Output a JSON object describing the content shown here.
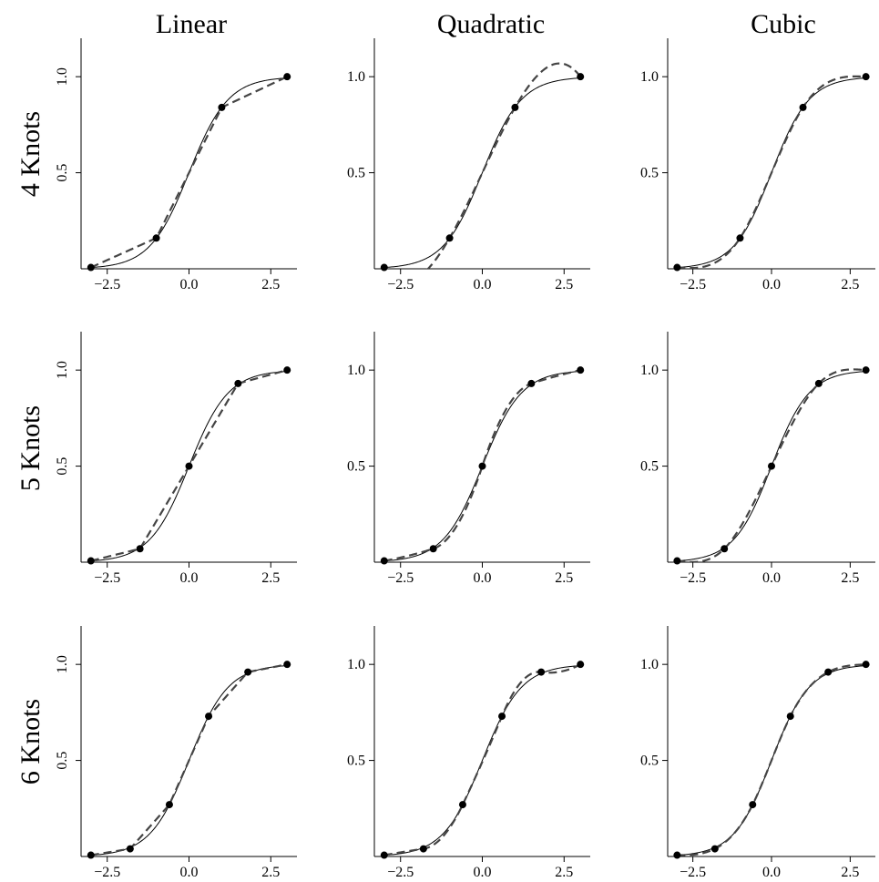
{
  "column_titles": [
    "Linear",
    "Quadratic",
    "Cubic"
  ],
  "row_titles": [
    "4 Knots",
    "5 Knots",
    "6 Knots"
  ],
  "colors": {
    "true_curve": "#000000",
    "approx_curve": "#444444",
    "knots": "#000000"
  },
  "chart_data": {
    "type": "line",
    "layout": "3x3 grid",
    "xlim": [
      -3.3,
      3.3
    ],
    "ylim": [
      0,
      1.2
    ],
    "x_ticks": [
      -2.5,
      0.0,
      2.5
    ],
    "x_tick_labels": [
      "−2.5",
      "0.0",
      "2.5"
    ],
    "y_ticks": [
      0.5,
      1.0
    ],
    "y_tick_labels": [
      "0.5",
      "1.0"
    ],
    "grid": false,
    "reference_function": "logistic(1.67x)",
    "panels": [
      {
        "row": "4 Knots",
        "column": "Linear",
        "degree": 1,
        "knots": [
          [
            -3.0,
            0.007
          ],
          [
            -1.0,
            0.16
          ],
          [
            1.0,
            0.84
          ],
          [
            3.0,
            1.0
          ]
        ]
      },
      {
        "row": "4 Knots",
        "column": "Quadratic",
        "degree": 2,
        "knots": [
          [
            -3.0,
            0.007
          ],
          [
            -1.0,
            0.16
          ],
          [
            1.0,
            0.84
          ],
          [
            3.0,
            1.0
          ]
        ]
      },
      {
        "row": "4 Knots",
        "column": "Cubic",
        "degree": 3,
        "knots": [
          [
            -3.0,
            0.007
          ],
          [
            -1.0,
            0.16
          ],
          [
            1.0,
            0.84
          ],
          [
            3.0,
            1.0
          ]
        ]
      },
      {
        "row": "5 Knots",
        "column": "Linear",
        "degree": 1,
        "knots": [
          [
            -3.0,
            0.007
          ],
          [
            -1.5,
            0.07
          ],
          [
            0.0,
            0.5
          ],
          [
            1.5,
            0.93
          ],
          [
            3.0,
            1.0
          ]
        ]
      },
      {
        "row": "5 Knots",
        "column": "Quadratic",
        "degree": 2,
        "knots": [
          [
            -3.0,
            0.007
          ],
          [
            -1.5,
            0.07
          ],
          [
            0.0,
            0.5
          ],
          [
            1.5,
            0.93
          ],
          [
            3.0,
            1.0
          ]
        ]
      },
      {
        "row": "5 Knots",
        "column": "Cubic",
        "degree": 3,
        "knots": [
          [
            -3.0,
            0.007
          ],
          [
            -1.5,
            0.07
          ],
          [
            0.0,
            0.5
          ],
          [
            1.5,
            0.93
          ],
          [
            3.0,
            1.0
          ]
        ]
      },
      {
        "row": "6 Knots",
        "column": "Linear",
        "degree": 1,
        "knots": [
          [
            -3.0,
            0.007
          ],
          [
            -1.8,
            0.04
          ],
          [
            -0.6,
            0.27
          ],
          [
            0.6,
            0.73
          ],
          [
            1.8,
            0.96
          ],
          [
            3.0,
            1.0
          ]
        ]
      },
      {
        "row": "6 Knots",
        "column": "Quadratic",
        "degree": 2,
        "knots": [
          [
            -3.0,
            0.007
          ],
          [
            -1.8,
            0.04
          ],
          [
            -0.6,
            0.27
          ],
          [
            0.6,
            0.73
          ],
          [
            1.8,
            0.96
          ],
          [
            3.0,
            1.0
          ]
        ]
      },
      {
        "row": "6 Knots",
        "column": "Cubic",
        "degree": 3,
        "knots": [
          [
            -3.0,
            0.007
          ],
          [
            -1.8,
            0.04
          ],
          [
            -0.6,
            0.27
          ],
          [
            0.6,
            0.73
          ],
          [
            1.8,
            0.96
          ],
          [
            3.0,
            1.0
          ]
        ]
      }
    ]
  }
}
